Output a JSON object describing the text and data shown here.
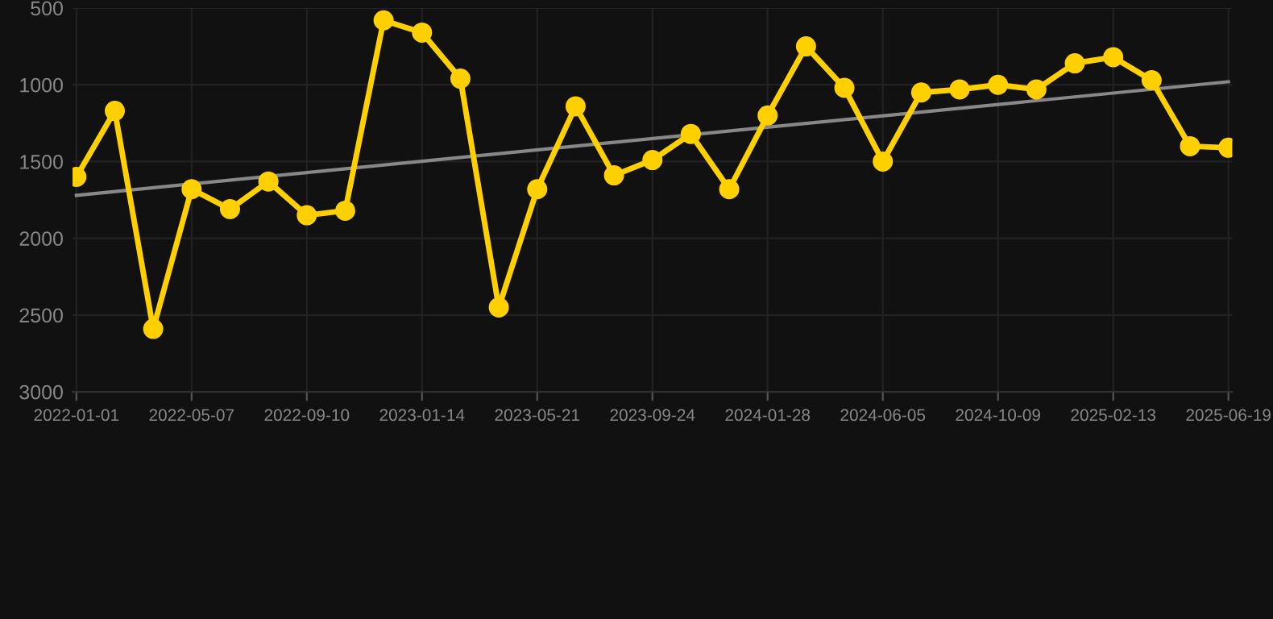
{
  "chart_data": {
    "type": "line",
    "categories": [
      "2022-01-01",
      null,
      null,
      "2022-05-07",
      null,
      null,
      "2022-09-10",
      null,
      null,
      "2023-01-14",
      null,
      null,
      "2023-05-21",
      null,
      null,
      "2023-09-24",
      null,
      null,
      "2024-01-28",
      null,
      null,
      "2024-06-05",
      null,
      null,
      "2024-10-09",
      null,
      null,
      "2025-02-13",
      null,
      null,
      "2025-06-19"
    ],
    "series": [
      {
        "color": "#ffd000",
        "marker": "circle",
        "values": [
          1600,
          1170,
          2590,
          1680,
          1810,
          1630,
          1850,
          1820,
          580,
          660,
          960,
          2450,
          1680,
          1140,
          1590,
          1490,
          1320,
          1680,
          1200,
          750,
          1020,
          1500,
          1050,
          1030,
          1000,
          1030,
          860,
          820,
          970,
          1400,
          1410
        ]
      },
      {
        "type": "line",
        "color": "#888888",
        "marker": "none",
        "values": [
          1720,
          null,
          null,
          null,
          null,
          null,
          null,
          null,
          null,
          null,
          null,
          null,
          null,
          null,
          null,
          null,
          null,
          null,
          null,
          null,
          null,
          null,
          null,
          null,
          null,
          null,
          null,
          null,
          null,
          null,
          980
        ]
      }
    ],
    "ylim": [
      3000,
      500
    ],
    "yticks": [
      500,
      1000,
      1500,
      2000,
      2500,
      3000
    ],
    "grid": true,
    "line_style": "solid"
  }
}
